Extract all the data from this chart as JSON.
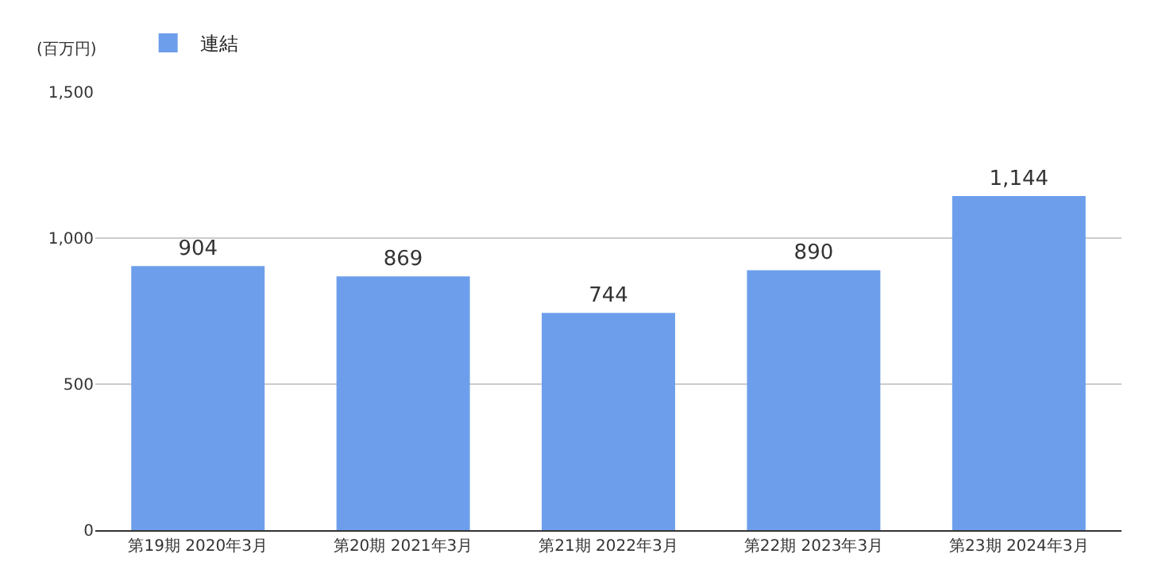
{
  "chart_data": {
    "type": "bar",
    "ylabel": "(百万円)",
    "categories": [
      "第19期 2020年3月",
      "第20期 2021年3月",
      "第21期 2022年3月",
      "第22期 2023年3月",
      "第23期 2024年3月"
    ],
    "series": [
      {
        "name": "連結",
        "color": "#6d9eeb",
        "values": [
          904,
          869,
          744,
          890,
          1144
        ]
      }
    ],
    "value_labels": [
      "904",
      "869",
      "744",
      "890",
      "1,144"
    ],
    "ylim": [
      0,
      1500
    ],
    "yticks": [
      0,
      {
        "value": 500,
        "label": "500"
      },
      {
        "value": 1000,
        "label": "1,000"
      },
      {
        "value": 1500,
        "label": "1,500"
      }
    ],
    "grid": "y",
    "legend": "top left"
  }
}
